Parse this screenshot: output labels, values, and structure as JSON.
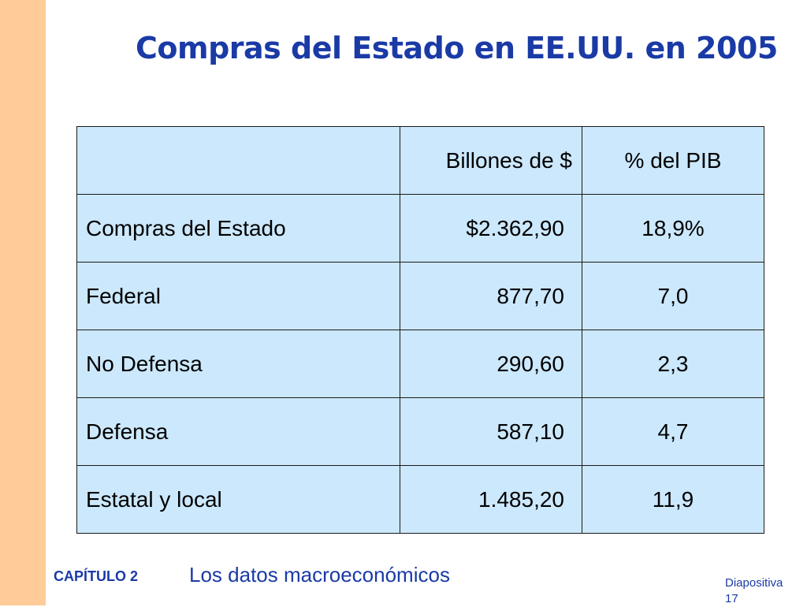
{
  "slide": {
    "title": "Compras del Estado en EE.UU. en 2005"
  },
  "table": {
    "headers": [
      "",
      "Billones de $",
      "% del PIB"
    ],
    "rows": [
      [
        "Compras del Estado",
        "$2.362,90",
        "18,9%"
      ],
      [
        "Federal",
        "877,70",
        "7,0"
      ],
      [
        "No Defensa",
        "290,60",
        "2,3"
      ],
      [
        "Defensa",
        "587,10",
        "4,7"
      ],
      [
        "Estatal y local",
        "1.485,20",
        "11,9"
      ]
    ]
  },
  "footer": {
    "chapter": "CAPÍTULO 2",
    "topic": "Los datos macroeconómicos",
    "slide_label": "Diapositiva",
    "slide_number": "17"
  },
  "colors": {
    "title": "#1a3aa6",
    "side_band": "#ffcc99",
    "table_fill": "#cce8fc"
  }
}
